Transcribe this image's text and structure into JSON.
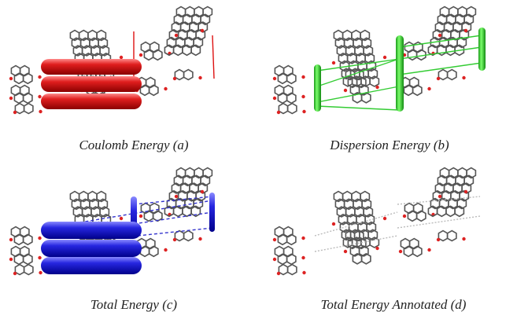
{
  "panels": [
    {
      "caption": "Coulomb Energy (a)"
    },
    {
      "caption": "Dispersion Energy (b)"
    },
    {
      "caption": "Total Energy (c)"
    },
    {
      "caption": "Total Energy Annotated (d)"
    }
  ]
}
